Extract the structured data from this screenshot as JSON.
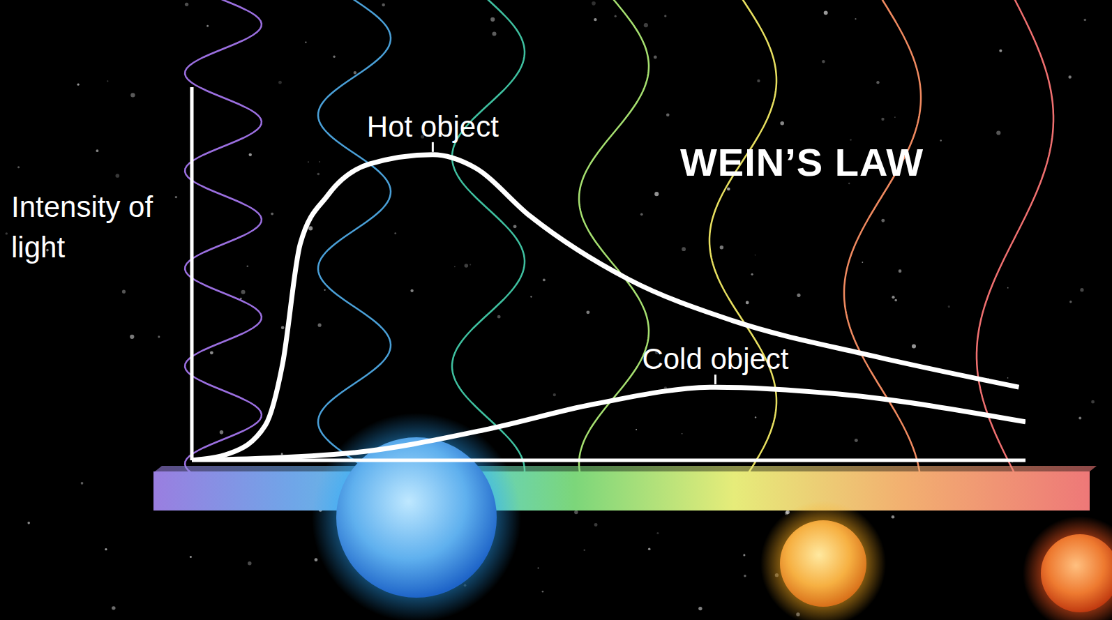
{
  "chart_data": {
    "type": "line",
    "title": "WEIN’S LAW",
    "y_label": "Intensity of light",
    "xlim": [
      0,
      100
    ],
    "ylim": [
      0,
      100
    ],
    "tick_labels": false,
    "grid": false,
    "series": [
      {
        "name": "Hot object",
        "color": "#ffffff",
        "x": [
          0,
          4.6,
          8.8,
          10.9,
          13,
          16.3,
          21.3,
          28.9,
          33.9,
          40.6,
          52.3,
          64.9,
          81.6,
          99.2
        ],
        "values": [
          0,
          1.9,
          9.3,
          26,
          58,
          71,
          79.4,
          81.9,
          78.5,
          65.4,
          48.6,
          37.4,
          28,
          19.6
        ]
      },
      {
        "name": "Cold object",
        "color": "#ffffff",
        "x": [
          0,
          18.8,
          35.6,
          48.1,
          62.8,
          77.4,
          100
        ],
        "values": [
          0,
          1.9,
          8.4,
          15,
          19.6,
          17.8,
          10.3
        ]
      }
    ]
  }
}
